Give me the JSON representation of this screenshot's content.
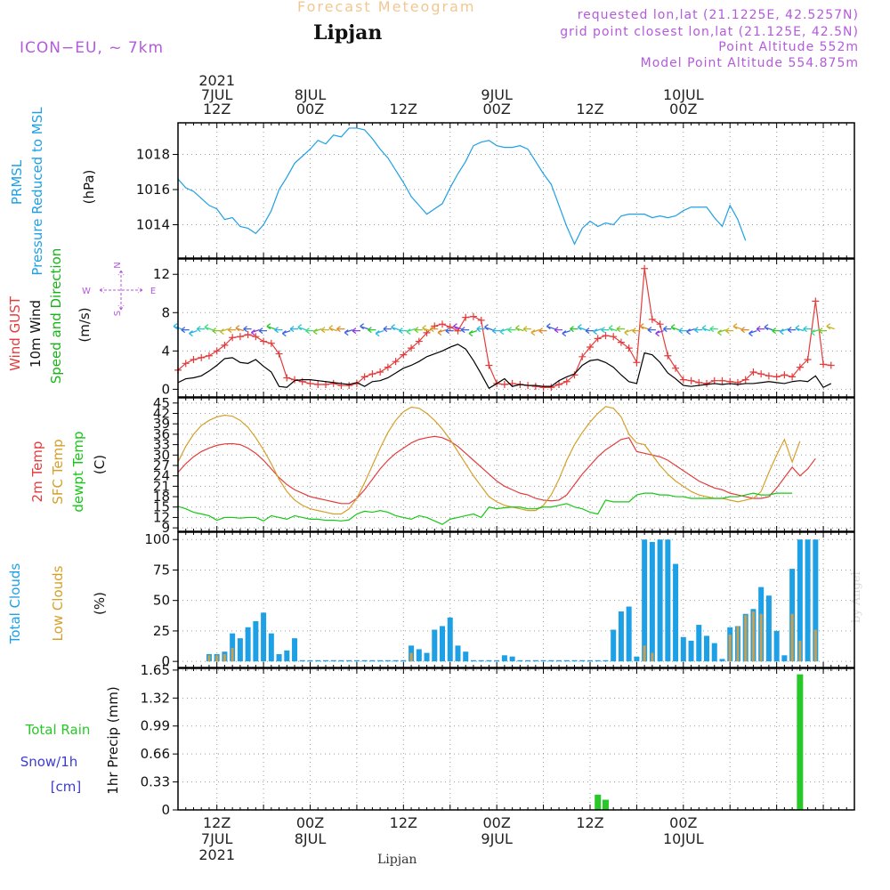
{
  "header": {
    "product": "Forecast Meteogram",
    "location": "Lipjan",
    "model": "ICON−EU, ~ 7km",
    "requested": "requested lon,lat (21.1225E, 42.5257N)",
    "grid": "grid point closest lon,lat (21.125E, 42.5N)",
    "point_alt": "Point Altitude 552m",
    "model_alt": "Model Point Altitude 554.875m",
    "footer": "Lipjan",
    "watermark": "by Angel"
  },
  "colors": {
    "pressure": "#1ea0e6",
    "gust": "#e43c3c",
    "wind": "#000000",
    "wind_dir": "#16b416",
    "temp": "#e43c3c",
    "sfc": "#d4a02a",
    "dewpt": "#16c816",
    "clouds": "#1ea0e6",
    "low_clouds": "#c8a050",
    "rain": "#28c828",
    "snow": "#3c3cd2",
    "accent": "#b45adc"
  },
  "time_axis": {
    "top_labels": [
      {
        "h": 12,
        "lines": [
          "2021",
          "7JUL",
          "12Z"
        ]
      },
      {
        "h": 24,
        "lines": [
          "8JUL",
          "00Z"
        ]
      },
      {
        "h": 36,
        "lines": [
          "12Z"
        ]
      },
      {
        "h": 48,
        "lines": [
          "9JUL",
          "00Z"
        ]
      },
      {
        "h": 60,
        "lines": [
          "12Z"
        ]
      },
      {
        "h": 72,
        "lines": [
          "10JUL",
          "00Z"
        ]
      }
    ],
    "bottom_labels": [
      {
        "h": 12,
        "lines": [
          "12Z",
          "7JUL",
          "2021"
        ]
      },
      {
        "h": 24,
        "lines": [
          "00Z",
          "8JUL"
        ]
      },
      {
        "h": 36,
        "lines": [
          "12Z"
        ]
      },
      {
        "h": 48,
        "lines": [
          "00Z",
          "9JUL"
        ]
      },
      {
        "h": 60,
        "lines": [
          "12Z"
        ]
      },
      {
        "h": 72,
        "lines": [
          "00Z",
          "10JUL"
        ]
      }
    ]
  },
  "chart_data": [
    {
      "id": "pressure",
      "type": "line",
      "ylabels": [
        "PRMSL",
        "Pressure Reduced to MSL",
        "(hPa)"
      ],
      "yticks": [
        1014,
        1016,
        1018
      ],
      "ylim": [
        1012.1,
        1019.8
      ],
      "series": [
        {
          "name": "PRMSL",
          "color": "#1ea0e6",
          "x_start": 7,
          "step": 1,
          "values": [
            1016.6,
            1016.1,
            1015.9,
            1015.5,
            1015.1,
            1014.9,
            1014.3,
            1014.4,
            1013.9,
            1013.8,
            1013.5,
            1014.0,
            1014.8,
            1016.0,
            1016.7,
            1017.5,
            1017.9,
            1018.3,
            1018.8,
            1018.6,
            1019.1,
            1019.0,
            1019.5,
            1019.5,
            1019.4,
            1018.9,
            1018.3,
            1017.8,
            1017.1,
            1016.4,
            1015.6,
            1015.1,
            1014.6,
            1014.9,
            1015.2,
            1016.1,
            1016.9,
            1017.6,
            1018.5,
            1018.7,
            1018.8,
            1018.5,
            1018.4,
            1018.4,
            1018.5,
            1018.3,
            1017.6,
            1016.9,
            1016.3,
            1015.1,
            1013.9,
            1012.9,
            1013.8,
            1014.2,
            1013.9,
            1014.1,
            1014.0,
            1014.5,
            1014.6,
            1014.6,
            1014.6,
            1014.4,
            1014.5,
            1014.4,
            1014.5,
            1014.8,
            1015.0,
            1015.0,
            1015.0,
            1014.4,
            1013.9,
            1015.1,
            1014.3,
            1013.1
          ]
        }
      ]
    },
    {
      "id": "wind",
      "type": "line",
      "ylabels": [
        "Wind GUST",
        "10m Wind",
        "Speed and Direction",
        "(m/s)"
      ],
      "compass": {
        "n": "N",
        "s": "S",
        "w": "W",
        "e": "E"
      },
      "yticks": [
        0,
        4,
        8,
        12
      ],
      "ylim": [
        -0.8,
        13.6
      ],
      "series": [
        {
          "name": "Wind GUST",
          "color": "#e43c3c",
          "marker": "+",
          "x_start": 7,
          "step": 1,
          "values": [
            2.0,
            2.7,
            3.1,
            3.3,
            3.5,
            4.0,
            4.6,
            5.4,
            5.5,
            5.7,
            5.5,
            5.0,
            4.8,
            3.7,
            1.2,
            1.0,
            0.8,
            0.6,
            0.5,
            0.5,
            0.6,
            0.4,
            0.4,
            0.6,
            1.3,
            1.6,
            1.8,
            2.3,
            2.9,
            3.6,
            4.3,
            5.0,
            5.9,
            6.6,
            6.8,
            6.5,
            6.1,
            7.5,
            7.6,
            7.2,
            2.5,
            0.6,
            0.5,
            0.6,
            0.5,
            0.4,
            0.3,
            0.2,
            0.2,
            0.5,
            0.8,
            1.5,
            3.4,
            4.4,
            5.3,
            5.6,
            5.5,
            4.9,
            4.3,
            2.8,
            12.6,
            7.3,
            6.8,
            3.5,
            2.2,
            1.0,
            0.9,
            0.7,
            0.6,
            0.9,
            0.9,
            0.8,
            0.7,
            1.0,
            1.8,
            1.6,
            1.4,
            1.3,
            1.5,
            1.3,
            2.3,
            3.1,
            9.2,
            2.6,
            2.5
          ]
        },
        {
          "name": "10m Wind",
          "color": "#000000",
          "x_start": 7,
          "step": 1,
          "values": [
            0.7,
            1.1,
            1.2,
            1.4,
            1.9,
            2.5,
            3.2,
            3.3,
            2.8,
            2.7,
            3.1,
            2.4,
            1.8,
            0.3,
            0.2,
            0.9,
            1.0,
            1.0,
            0.9,
            0.8,
            0.7,
            0.6,
            0.5,
            0.7,
            0.3,
            0.8,
            0.9,
            1.2,
            1.7,
            2.2,
            2.5,
            2.9,
            3.4,
            3.7,
            4.0,
            4.4,
            4.7,
            4.2,
            3.0,
            1.6,
            0.1,
            0.6,
            1.1,
            0.3,
            0.5,
            0.4,
            0.4,
            0.3,
            0.3,
            0.9,
            1.3,
            1.6,
            2.5,
            3.0,
            3.1,
            2.8,
            2.3,
            1.5,
            0.8,
            0.6,
            3.8,
            3.6,
            2.8,
            1.7,
            1.1,
            0.4,
            0.3,
            0.4,
            0.5,
            0.6,
            0.5,
            0.6,
            0.5,
            0.6,
            0.6,
            0.7,
            0.8,
            0.7,
            0.6,
            0.8,
            0.9,
            0.8,
            1.4,
            0.2,
            0.6
          ]
        }
      ],
      "arrows": {
        "x_start": 7,
        "y": 6.2,
        "pattern": [
          "#28b4e0",
          "#3c64e0",
          "#28b4e0",
          "#28c8c8",
          "#3cdc78",
          "#78c828",
          "#c8b428",
          "#dca028",
          "#dc8c28",
          "#3c64e0",
          "#8c3cdc",
          "#3c64e0",
          "#28c828"
        ]
      }
    },
    {
      "id": "temperature",
      "type": "line",
      "ylabels": [
        "2m Temp",
        "SFC Temp",
        "dewpt Temp",
        "(C)"
      ],
      "yticks": [
        9,
        12,
        15,
        18,
        21,
        24,
        27,
        30,
        33,
        36,
        39,
        42,
        45
      ],
      "ylim": [
        8.0,
        46.5
      ],
      "series": [
        {
          "name": "2m Temp",
          "color": "#e43c3c",
          "x_start": 7,
          "step": 1,
          "values": [
            25.0,
            27.5,
            29.5,
            31.0,
            32.0,
            32.8,
            33.2,
            33.3,
            33.0,
            32.0,
            30.5,
            28.5,
            26.0,
            23.5,
            21.5,
            20.0,
            19.0,
            18.0,
            17.5,
            17.0,
            16.5,
            16.0,
            16.0,
            17.5,
            20.0,
            23.0,
            26.0,
            28.5,
            30.5,
            32.0,
            33.5,
            34.5,
            35.0,
            35.4,
            35.0,
            34.0,
            32.5,
            30.5,
            28.5,
            26.5,
            24.5,
            22.5,
            21.0,
            20.0,
            19.0,
            18.5,
            17.5,
            17.0,
            16.8,
            17.0,
            18.5,
            21.5,
            24.5,
            27.0,
            29.5,
            31.5,
            33.0,
            34.5,
            35.0,
            31.0,
            30.5,
            30.0,
            29.5,
            28.5,
            27.0,
            25.5,
            24.0,
            22.5,
            21.5,
            20.5,
            20.0,
            19.0,
            18.5,
            18.0,
            17.5,
            17.5,
            18.0,
            20.5,
            23.5,
            26.5,
            24.0,
            26.0,
            29.0
          ]
        },
        {
          "name": "SFC Temp",
          "color": "#d4a02a",
          "x_start": 7,
          "step": 1,
          "values": [
            28.0,
            32.5,
            36.0,
            38.5,
            40.0,
            41.0,
            41.5,
            41.2,
            40.0,
            38.0,
            35.0,
            31.5,
            27.5,
            23.0,
            19.5,
            17.0,
            15.5,
            14.5,
            14.0,
            13.5,
            13.0,
            13.0,
            14.5,
            17.5,
            22.0,
            27.0,
            32.0,
            36.5,
            40.0,
            42.5,
            43.8,
            43.5,
            42.0,
            40.0,
            37.5,
            34.5,
            31.0,
            27.5,
            24.0,
            21.0,
            18.0,
            16.5,
            15.5,
            15.0,
            14.5,
            14.0,
            14.0,
            15.5,
            18.5,
            23.0,
            28.5,
            33.0,
            36.5,
            39.5,
            42.0,
            44.0,
            43.5,
            41.0,
            36.0,
            33.5,
            33.0,
            30.0,
            27.0,
            24.5,
            22.5,
            21.0,
            19.5,
            18.5,
            18.0,
            17.5,
            17.5,
            17.0,
            16.5,
            17.0,
            17.5,
            19.5,
            25.0,
            30.0,
            34.5,
            28.0,
            34.0
          ]
        },
        {
          "name": "dewpt Temp",
          "color": "#16c816",
          "x_start": 7,
          "step": 1,
          "values": [
            15.2,
            14.5,
            13.5,
            13.0,
            12.5,
            11.2,
            12.0,
            12.0,
            11.8,
            12.0,
            12.0,
            11.0,
            12.5,
            12.0,
            11.5,
            12.5,
            12.0,
            11.5,
            11.5,
            11.2,
            11.2,
            11.0,
            11.3,
            13.0,
            13.8,
            13.5,
            14.0,
            13.5,
            12.5,
            12.0,
            11.5,
            12.5,
            12.0,
            11.0,
            10.0,
            11.5,
            12.0,
            12.5,
            13.0,
            12.0,
            15.0,
            14.5,
            14.8,
            15.0,
            15.0,
            14.5,
            14.5,
            15.0,
            15.0,
            15.5,
            16.0,
            15.0,
            14.5,
            13.5,
            13.0,
            17.0,
            16.5,
            16.5,
            16.5,
            18.5,
            19.0,
            19.0,
            18.5,
            18.5,
            18.0,
            18.0,
            17.5,
            17.5,
            17.5,
            17.5,
            17.5,
            18.0,
            18.0,
            18.5,
            19.0,
            18.5,
            18.5,
            19.0,
            19.0,
            19.0
          ]
        }
      ]
    },
    {
      "id": "clouds",
      "type": "bar",
      "ylabels": [
        "Total Clouds",
        "Low Clouds",
        "(%)"
      ],
      "yticks": [
        0,
        25,
        50,
        75,
        100
      ],
      "ylim": [
        -5,
        106
      ],
      "series": [
        {
          "name": "Total Clouds",
          "color": "#1ea0e6",
          "x_start": 11,
          "step": 1,
          "values": [
            6,
            6,
            8,
            23,
            19,
            28,
            33,
            40,
            23,
            6,
            9,
            19,
            1,
            1,
            1,
            1,
            1,
            1,
            1,
            1,
            1,
            1,
            1,
            1,
            1,
            1,
            13,
            10,
            7,
            26,
            29,
            36,
            13,
            8,
            1,
            1,
            1,
            1,
            5,
            4,
            1,
            1,
            1,
            1,
            1,
            1,
            1,
            1,
            1,
            1,
            1,
            1,
            26,
            41,
            45,
            4,
            100,
            98,
            100,
            100,
            80,
            20,
            17,
            30,
            21,
            15,
            2,
            28,
            29,
            39,
            43,
            61,
            54,
            25,
            5,
            76,
            100,
            100,
            100
          ]
        },
        {
          "name": "Low Clouds",
          "color": "#c8a050",
          "x_start": 11,
          "step": 1,
          "values": [
            5,
            5,
            6,
            11,
            0,
            0,
            0,
            0,
            0,
            0,
            0,
            0,
            0,
            0,
            0,
            0,
            0,
            0,
            0,
            0,
            0,
            0,
            0,
            0,
            0,
            0,
            7,
            0,
            0,
            0,
            0,
            0,
            0,
            0,
            0,
            0,
            0,
            0,
            0,
            0,
            0,
            0,
            0,
            0,
            0,
            0,
            0,
            0,
            0,
            0,
            0,
            0,
            0,
            0,
            0,
            0,
            13,
            7,
            0,
            0,
            0,
            0,
            0,
            0,
            0,
            0,
            0,
            22,
            29,
            38,
            41,
            39,
            0,
            0,
            0,
            39,
            17,
            0,
            26
          ]
        }
      ]
    },
    {
      "id": "precipitation",
      "type": "bar",
      "ylabels": [
        "Total Rain",
        "Snow/1h",
        "[cm]",
        "1hr Precip (mm)"
      ],
      "yticks": [
        0,
        0.33,
        0.66,
        0.99,
        1.32,
        1.65
      ],
      "ylim": [
        0,
        1.67
      ],
      "series": [
        {
          "name": "Total Rain",
          "color": "#28c828",
          "bars": [
            {
              "x": 61,
              "value": 0.18
            },
            {
              "x": 62,
              "value": 0.12
            },
            {
              "x": 86,
              "value": 0.01
            },
            {
              "x": 87,
              "value": 1.6
            }
          ]
        }
      ]
    }
  ]
}
